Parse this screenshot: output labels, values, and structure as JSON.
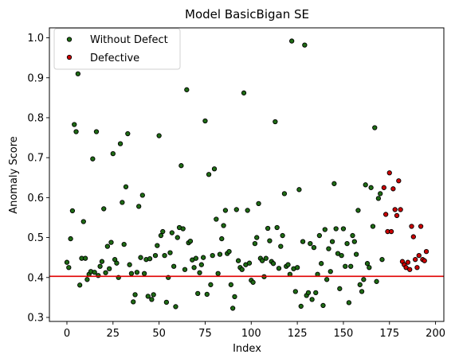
{
  "chart_data": {
    "type": "scatter",
    "title": "Model BasicBigan SE",
    "xlabel": "Index",
    "ylabel": "Anomaly Score",
    "xlim": [
      -9.5,
      204.5
    ],
    "ylim": [
      0.29,
      1.025
    ],
    "xticks": [
      0,
      25,
      50,
      75,
      100,
      125,
      150,
      175,
      200
    ],
    "yticks": [
      0.3,
      0.4,
      0.5,
      0.6,
      0.7,
      0.8,
      0.9,
      1.0
    ],
    "xtick_labels": [
      "0",
      "25",
      "50",
      "75",
      "100",
      "125",
      "150",
      "175",
      "200"
    ],
    "ytick_labels": [
      "0.3",
      "0.4",
      "0.5",
      "0.6",
      "0.7",
      "0.8",
      "0.9",
      "1.0"
    ],
    "threshold": {
      "y": 0.403,
      "color": "#e00000"
    },
    "legend": {
      "placement": "top-left"
    },
    "series": [
      {
        "name": "Without Defect",
        "color": "#1e6b14",
        "points": [
          [
            0,
            0.438
          ],
          [
            1,
            0.425
          ],
          [
            2,
            0.497
          ],
          [
            3,
            0.567
          ],
          [
            4,
            0.783
          ],
          [
            5,
            0.765
          ],
          [
            6,
            0.91
          ],
          [
            7,
            0.381
          ],
          [
            8,
            0.448
          ],
          [
            9,
            0.54
          ],
          [
            10,
            0.448
          ],
          [
            11,
            0.395
          ],
          [
            12,
            0.408
          ],
          [
            13,
            0.415
          ],
          [
            14,
            0.697
          ],
          [
            15,
            0.413
          ],
          [
            16,
            0.765
          ],
          [
            17,
            0.405
          ],
          [
            18,
            0.428
          ],
          [
            19,
            0.44
          ],
          [
            20,
            0.572
          ],
          [
            21,
            0.412
          ],
          [
            22,
            0.478
          ],
          [
            23,
            0.422
          ],
          [
            24,
            0.488
          ],
          [
            25,
            0.71
          ],
          [
            26,
            0.445
          ],
          [
            27,
            0.436
          ],
          [
            28,
            0.4
          ],
          [
            29,
            0.735
          ],
          [
            30,
            0.588
          ],
          [
            31,
            0.483
          ],
          [
            32,
            0.627
          ],
          [
            33,
            0.76
          ],
          [
            34,
            0.432
          ],
          [
            35,
            0.41
          ],
          [
            36,
            0.339
          ],
          [
            37,
            0.357
          ],
          [
            38,
            0.413
          ],
          [
            39,
            0.578
          ],
          [
            40,
            0.45
          ],
          [
            41,
            0.606
          ],
          [
            42,
            0.41
          ],
          [
            43,
            0.445
          ],
          [
            44,
            0.353
          ],
          [
            45,
            0.447
          ],
          [
            46,
            0.345
          ],
          [
            47,
            0.357
          ],
          [
            48,
            0.455
          ],
          [
            49,
            0.48
          ],
          [
            50,
            0.755
          ],
          [
            51,
            0.505
          ],
          [
            52,
            0.515
          ],
          [
            53,
            0.455
          ],
          [
            54,
            0.338
          ],
          [
            55,
            0.4
          ],
          [
            56,
            0.462
          ],
          [
            57,
            0.512
          ],
          [
            58,
            0.428
          ],
          [
            59,
            0.327
          ],
          [
            60,
            0.5
          ],
          [
            61,
            0.525
          ],
          [
            62,
            0.68
          ],
          [
            63,
            0.522
          ],
          [
            64,
            0.42
          ],
          [
            65,
            0.87
          ],
          [
            66,
            0.487
          ],
          [
            67,
            0.491
          ],
          [
            68,
            0.444
          ],
          [
            69,
            0.425
          ],
          [
            70,
            0.448
          ],
          [
            71,
            0.36
          ],
          [
            72,
            0.412
          ],
          [
            73,
            0.432
          ],
          [
            74,
            0.45
          ],
          [
            75,
            0.792
          ],
          [
            76,
            0.358
          ],
          [
            77,
            0.658
          ],
          [
            78,
            0.382
          ],
          [
            79,
            0.455
          ],
          [
            80,
            0.672
          ],
          [
            81,
            0.546
          ],
          [
            82,
            0.41
          ],
          [
            83,
            0.458
          ],
          [
            84,
            0.497
          ],
          [
            85,
            0.53
          ],
          [
            86,
            0.568
          ],
          [
            87,
            0.46
          ],
          [
            88,
            0.465
          ],
          [
            89,
            0.382
          ],
          [
            90,
            0.323
          ],
          [
            91,
            0.352
          ],
          [
            92,
            0.57
          ],
          [
            93,
            0.442
          ],
          [
            94,
            0.425
          ],
          [
            95,
            0.42
          ],
          [
            96,
            0.862
          ],
          [
            97,
            0.432
          ],
          [
            98,
            0.568
          ],
          [
            99,
            0.436
          ],
          [
            100,
            0.393
          ],
          [
            101,
            0.388
          ],
          [
            102,
            0.485
          ],
          [
            103,
            0.5
          ],
          [
            104,
            0.585
          ],
          [
            105,
            0.448
          ],
          [
            106,
            0.442
          ],
          [
            107,
            0.402
          ],
          [
            108,
            0.448
          ],
          [
            109,
            0.523
          ],
          [
            110,
            0.492
          ],
          [
            111,
            0.44
          ],
          [
            112,
            0.435
          ],
          [
            113,
            0.79
          ],
          [
            114,
            0.525
          ],
          [
            115,
            0.423
          ],
          [
            116,
            0.478
          ],
          [
            117,
            0.505
          ],
          [
            118,
            0.61
          ],
          [
            119,
            0.428
          ],
          [
            120,
            0.432
          ],
          [
            121,
            0.408
          ],
          [
            122,
            0.992
          ],
          [
            123,
            0.422
          ],
          [
            124,
            0.365
          ],
          [
            125,
            0.425
          ],
          [
            126,
            0.62
          ],
          [
            127,
            0.328
          ],
          [
            128,
            0.49
          ],
          [
            129,
            0.982
          ],
          [
            130,
            0.355
          ],
          [
            131,
            0.362
          ],
          [
            132,
            0.485
          ],
          [
            133,
            0.345
          ],
          [
            134,
            0.475
          ],
          [
            135,
            0.362
          ],
          [
            136,
            0.408
          ],
          [
            137,
            0.505
          ],
          [
            138,
            0.435
          ],
          [
            139,
            0.33
          ],
          [
            140,
            0.52
          ],
          [
            141,
            0.395
          ],
          [
            142,
            0.472
          ],
          [
            143,
            0.415
          ],
          [
            144,
            0.49
          ],
          [
            145,
            0.635
          ],
          [
            146,
            0.522
          ],
          [
            147,
            0.46
          ],
          [
            148,
            0.372
          ],
          [
            149,
            0.455
          ],
          [
            150,
            0.522
          ],
          [
            151,
            0.428
          ],
          [
            152,
            0.485
          ],
          [
            153,
            0.337
          ],
          [
            154,
            0.428
          ],
          [
            155,
            0.505
          ],
          [
            156,
            0.49
          ],
          [
            157,
            0.458
          ],
          [
            158,
            0.568
          ],
          [
            159,
            0.382
          ],
          [
            160,
            0.365
          ],
          [
            161,
            0.395
          ],
          [
            162,
            0.632
          ],
          [
            163,
            0.435
          ],
          [
            164,
            0.425
          ],
          [
            165,
            0.625
          ],
          [
            166,
            0.528
          ],
          [
            167,
            0.775
          ],
          [
            168,
            0.39
          ],
          [
            169,
            0.598
          ],
          [
            170,
            0.61
          ],
          [
            171,
            0.445
          ]
        ]
      },
      {
        "name": "Defective",
        "color": "#cc0000",
        "points": [
          [
            172,
            0.625
          ],
          [
            173,
            0.558
          ],
          [
            174,
            0.515
          ],
          [
            175,
            0.662
          ],
          [
            176,
            0.515
          ],
          [
            177,
            0.622
          ],
          [
            178,
            0.57
          ],
          [
            179,
            0.555
          ],
          [
            180,
            0.642
          ],
          [
            181,
            0.57
          ],
          [
            182,
            0.44
          ],
          [
            183,
            0.432
          ],
          [
            184,
            0.425
          ],
          [
            185,
            0.438
          ],
          [
            186,
            0.42
          ],
          [
            187,
            0.528
          ],
          [
            188,
            0.502
          ],
          [
            189,
            0.445
          ],
          [
            190,
            0.425
          ],
          [
            191,
            0.455
          ],
          [
            192,
            0.528
          ],
          [
            193,
            0.445
          ],
          [
            194,
            0.442
          ],
          [
            195,
            0.465
          ]
        ]
      }
    ]
  }
}
